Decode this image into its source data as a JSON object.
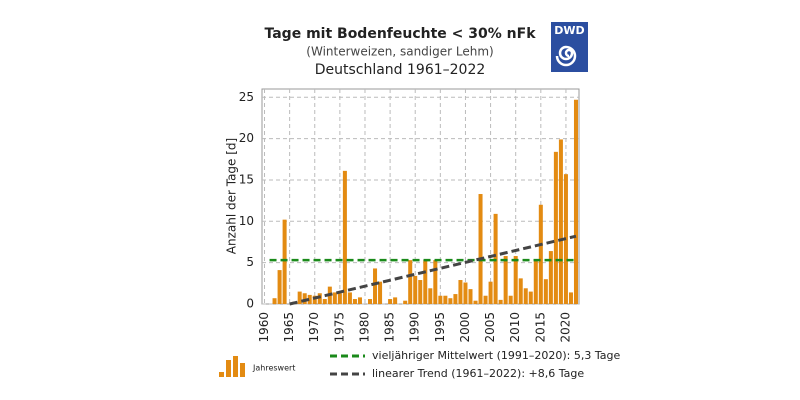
{
  "chart_data": {
    "type": "bar",
    "title": "Tage mit Bodenfeuchte < 30% nFk",
    "subtitle": "(Winterweizen, sandiger Lehm)",
    "region": "Deutschland 1961–2022",
    "logo": "DWD",
    "ylabel": "Anzahl der Tage [d]",
    "x": [
      1961,
      1962,
      1963,
      1964,
      1965,
      1966,
      1967,
      1968,
      1969,
      1970,
      1971,
      1972,
      1973,
      1974,
      1975,
      1976,
      1977,
      1978,
      1979,
      1980,
      1981,
      1982,
      1983,
      1984,
      1985,
      1986,
      1987,
      1988,
      1989,
      1990,
      1991,
      1992,
      1993,
      1994,
      1995,
      1996,
      1997,
      1998,
      1999,
      2000,
      2001,
      2002,
      2003,
      2004,
      2005,
      2006,
      2007,
      2008,
      2009,
      2010,
      2011,
      2012,
      2013,
      2014,
      2015,
      2016,
      2017,
      2018,
      2019,
      2020,
      2021,
      2022
    ],
    "series": [
      {
        "name": "Jahreswert",
        "color": "#e38b12",
        "values": [
          0,
          0.7,
          4.1,
          10.2,
          0,
          0.3,
          1.5,
          1.3,
          1.1,
          1.0,
          1.3,
          0.6,
          2.1,
          1.4,
          1.3,
          16.1,
          1.4,
          0.6,
          0.8,
          0,
          0.6,
          4.3,
          2.7,
          0,
          0.6,
          0.8,
          0,
          0.4,
          5.3,
          3.4,
          2.9,
          5.3,
          1.9,
          5.3,
          1.0,
          1.0,
          0.7,
          1.2,
          2.9,
          2.6,
          1.8,
          0.4,
          13.3,
          1.0,
          2.7,
          10.9,
          0.5,
          5.8,
          1.0,
          5.8,
          3.1,
          1.9,
          1.5,
          5.3,
          12.0,
          3.0,
          6.4,
          18.4,
          19.9,
          15.7,
          1.4,
          24.7
        ]
      }
    ],
    "mean": {
      "name": "vieljähriger Mittelwert  (1991–2020): 5,3 Tage",
      "color": "#1a8a1a",
      "value": 5.3,
      "x": [
        1961,
        2022
      ]
    },
    "trend": {
      "name": "linearer Trend (1961–2022): +8,6 Tage",
      "color": "#444444",
      "x": [
        1965,
        2022
      ],
      "values": [
        0,
        8.2
      ]
    },
    "xlim": [
      1959.5,
      2022.6
    ],
    "ylim": [
      0,
      26
    ],
    "xticks": [
      1960,
      1965,
      1970,
      1975,
      1980,
      1985,
      1990,
      1995,
      2000,
      2005,
      2010,
      2015,
      2020
    ],
    "yticks": [
      0,
      5,
      10,
      15,
      20,
      25
    ],
    "grid": true
  }
}
